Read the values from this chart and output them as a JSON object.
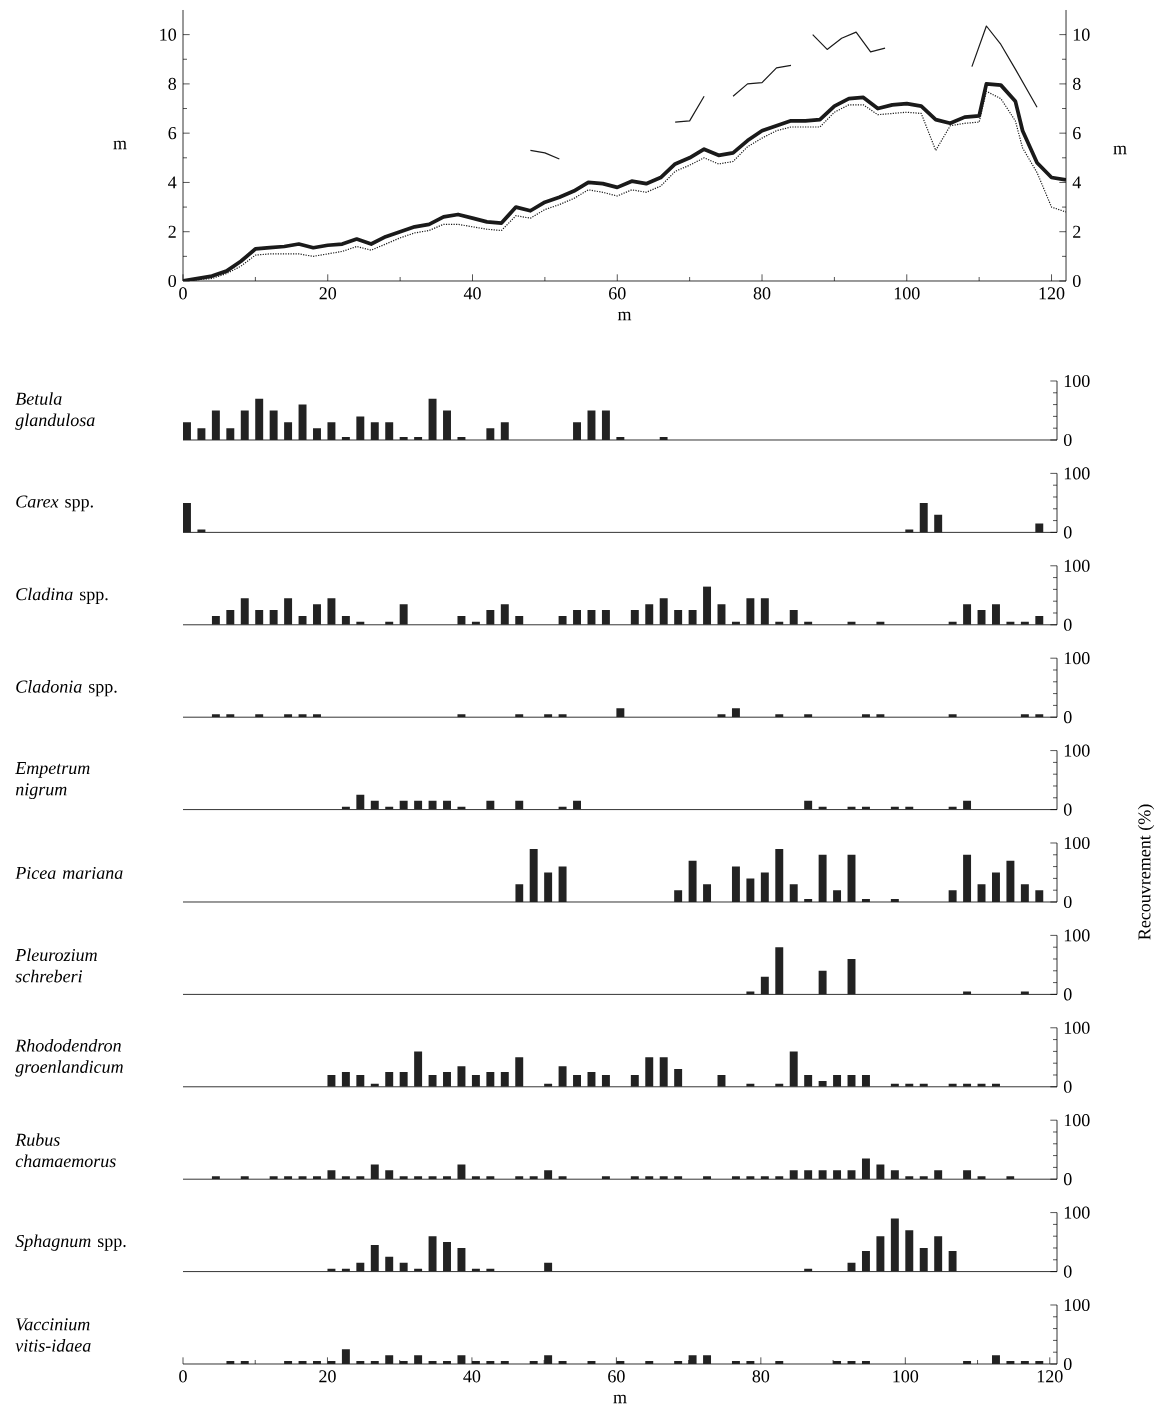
{
  "chart_data": [
    {
      "type": "line",
      "xlabel": "m",
      "ylabel": "m",
      "y2label": "m",
      "xlim": [
        0,
        122
      ],
      "xticks": [
        0,
        20,
        40,
        60,
        80,
        100,
        120
      ],
      "ylim": [
        0,
        11
      ],
      "yticks": [
        0,
        2,
        4,
        6,
        8,
        10
      ],
      "y2lim": [
        0,
        11
      ],
      "y2ticks": [
        0,
        2,
        4,
        6,
        8,
        10
      ],
      "x": [
        0,
        2,
        4,
        6,
        8,
        10,
        12,
        14,
        16,
        18,
        20,
        22,
        24,
        26,
        28,
        30,
        32,
        34,
        36,
        38,
        40,
        42,
        44,
        46,
        48,
        50,
        52,
        54,
        56,
        58,
        60,
        62,
        64,
        66,
        68,
        70,
        72,
        74,
        76,
        78,
        80,
        82,
        84,
        86,
        88,
        90,
        92,
        94,
        96,
        98,
        100,
        102,
        104,
        106,
        108,
        110,
        111,
        113,
        115,
        116,
        118,
        120,
        122
      ],
      "series": [
        {
          "color": "#1a1a1a",
          "line_style": "solid",
          "values": [
            0,
            0.1,
            0.2,
            0.4,
            0.8,
            1.3,
            1.35,
            1.4,
            1.5,
            1.35,
            1.45,
            1.5,
            1.7,
            1.5,
            1.8,
            2.0,
            2.2,
            2.3,
            2.6,
            2.7,
            2.55,
            2.4,
            2.35,
            3.0,
            2.85,
            3.2,
            3.4,
            3.65,
            4.0,
            3.95,
            3.8,
            4.05,
            3.95,
            4.2,
            4.75,
            5.0,
            5.35,
            5.1,
            5.2,
            5.7,
            6.1,
            6.3,
            6.5,
            6.5,
            6.55,
            7.1,
            7.4,
            7.45,
            7.0,
            7.15,
            7.2,
            7.1,
            6.55,
            6.4,
            6.65,
            6.7,
            8.0,
            7.95,
            7.3,
            6.1,
            4.8,
            4.2,
            4.1
          ]
        },
        {
          "color": "#1a1a1a",
          "line_style": "dotted",
          "values": [
            0,
            0.05,
            0.1,
            0.3,
            0.6,
            1.05,
            1.1,
            1.1,
            1.1,
            1.0,
            1.1,
            1.2,
            1.4,
            1.25,
            1.5,
            1.75,
            1.95,
            2.05,
            2.3,
            2.3,
            2.2,
            2.1,
            2.05,
            2.65,
            2.55,
            2.9,
            3.1,
            3.35,
            3.7,
            3.6,
            3.45,
            3.7,
            3.6,
            3.85,
            4.45,
            4.7,
            5.0,
            4.75,
            4.85,
            5.45,
            5.8,
            6.1,
            6.25,
            6.25,
            6.25,
            6.85,
            7.15,
            7.15,
            6.75,
            6.8,
            6.85,
            6.8,
            5.3,
            6.3,
            6.4,
            6.45,
            7.7,
            7.4,
            6.5,
            5.4,
            4.4,
            3.0,
            2.8
          ]
        },
        {
          "color": "#1a1a1a",
          "line_style": "solid",
          "x": [
            48,
            50,
            52,
            60,
            68,
            70,
            72,
            74,
            76,
            78,
            80,
            82,
            84,
            86,
            87,
            89,
            91,
            93,
            95,
            97,
            103,
            109,
            111,
            113,
            115,
            118
          ],
          "values": [
            5.3,
            5.2,
            4.95,
            null,
            6.45,
            6.5,
            7.5,
            null,
            7.5,
            8.0,
            8.05,
            8.65,
            8.75,
            null,
            10.0,
            9.4,
            9.85,
            10.1,
            9.3,
            9.45,
            null,
            8.7,
            10.35,
            9.6,
            8.6,
            7.05
          ]
        }
      ]
    },
    {
      "type": "bar",
      "title": "*Betula glandulosa*",
      "color": "#222222",
      "xlim": [
        0,
        121
      ],
      "ylim": [
        0,
        100
      ],
      "yticks": [
        0,
        100
      ],
      "tick_labels": "y",
      "x": [
        0,
        2,
        4,
        6,
        8,
        10,
        12,
        14,
        16,
        18,
        20,
        22,
        24,
        26,
        28,
        30,
        32,
        34,
        36,
        38,
        42,
        44,
        54,
        56,
        58,
        60,
        66
      ],
      "values": [
        30,
        20,
        50,
        20,
        50,
        70,
        50,
        30,
        60,
        20,
        30,
        5,
        40,
        30,
        30,
        5,
        5,
        70,
        50,
        5,
        20,
        30,
        30,
        50,
        50,
        5,
        5
      ]
    },
    {
      "type": "bar",
      "title": "*Carex* spp.",
      "color": "#222222",
      "xlim": [
        0,
        121
      ],
      "ylim": [
        0,
        100
      ],
      "yticks": [
        0,
        100
      ],
      "tick_labels": "y",
      "x": [
        0,
        2,
        100,
        102,
        104,
        118
      ],
      "values": [
        50,
        5,
        5,
        50,
        30,
        15
      ]
    },
    {
      "type": "bar",
      "title": "*Cladina* spp.",
      "color": "#222222",
      "xlim": [
        0,
        121
      ],
      "ylim": [
        0,
        100
      ],
      "yticks": [
        0,
        100
      ],
      "tick_labels": "y",
      "x": [
        4,
        6,
        8,
        10,
        12,
        14,
        16,
        18,
        20,
        22,
        24,
        28,
        30,
        38,
        40,
        42,
        44,
        46,
        52,
        54,
        56,
        58,
        62,
        64,
        66,
        68,
        70,
        72,
        74,
        76,
        78,
        80,
        82,
        84,
        86,
        92,
        96,
        106,
        108,
        110,
        112,
        114,
        116,
        118
      ],
      "values": [
        15,
        25,
        45,
        25,
        25,
        45,
        15,
        35,
        45,
        15,
        5,
        5,
        35,
        15,
        5,
        25,
        35,
        15,
        15,
        25,
        25,
        25,
        25,
        35,
        45,
        25,
        25,
        65,
        35,
        5,
        45,
        45,
        5,
        25,
        5,
        5,
        5,
        5,
        35,
        25,
        35,
        5,
        5,
        15
      ]
    },
    {
      "type": "bar",
      "title": "*Cladonia* spp.",
      "color": "#222222",
      "xlim": [
        0,
        121
      ],
      "ylim": [
        0,
        100
      ],
      "yticks": [
        0,
        100
      ],
      "tick_labels": "y",
      "x": [
        4,
        6,
        10,
        14,
        16,
        18,
        38,
        46,
        50,
        52,
        60,
        74,
        76,
        82,
        86,
        94,
        96,
        106,
        116,
        118
      ],
      "values": [
        5,
        5,
        5,
        5,
        5,
        5,
        5,
        5,
        5,
        5,
        15,
        5,
        15,
        5,
        5,
        5,
        5,
        5,
        5,
        5
      ]
    },
    {
      "type": "bar",
      "title": "*Empetrum nigrum*",
      "color": "#222222",
      "xlim": [
        0,
        121
      ],
      "ylim": [
        0,
        100
      ],
      "yticks": [
        0,
        100
      ],
      "tick_labels": "y",
      "x": [
        22,
        24,
        26,
        28,
        30,
        32,
        34,
        36,
        38,
        42,
        46,
        52,
        54,
        86,
        88,
        92,
        94,
        98,
        100,
        106,
        108
      ],
      "values": [
        5,
        25,
        15,
        5,
        15,
        15,
        15,
        15,
        5,
        15,
        15,
        5,
        15,
        15,
        5,
        5,
        5,
        5,
        5,
        5,
        15
      ]
    },
    {
      "type": "bar",
      "title": "*Picea mariana*",
      "ylabel": "Recouvrement (%)",
      "color": "#222222",
      "xlim": [
        0,
        121
      ],
      "ylim": [
        0,
        100
      ],
      "yticks": [
        0,
        100
      ],
      "tick_labels": "y",
      "x": [
        46,
        48,
        50,
        52,
        68,
        70,
        72,
        76,
        78,
        80,
        82,
        84,
        86,
        88,
        90,
        92,
        94,
        98,
        106,
        108,
        110,
        112,
        114,
        116,
        118
      ],
      "values": [
        30,
        90,
        50,
        60,
        20,
        70,
        30,
        60,
        40,
        50,
        90,
        30,
        5,
        80,
        20,
        80,
        5,
        5,
        20,
        80,
        30,
        50,
        70,
        30,
        20
      ]
    },
    {
      "type": "bar",
      "title": "*Pleurozium schreberi*",
      "color": "#222222",
      "xlim": [
        0,
        121
      ],
      "ylim": [
        0,
        100
      ],
      "yticks": [
        0,
        100
      ],
      "tick_labels": "y",
      "x": [
        78,
        80,
        82,
        88,
        92,
        108,
        116
      ],
      "values": [
        5,
        30,
        80,
        40,
        60,
        5,
        5
      ]
    },
    {
      "type": "bar",
      "title": "*Rhododendron groenlandicum*",
      "color": "#222222",
      "xlim": [
        0,
        121
      ],
      "ylim": [
        0,
        100
      ],
      "yticks": [
        0,
        100
      ],
      "tick_labels": "y",
      "x": [
        20,
        22,
        24,
        26,
        28,
        30,
        32,
        34,
        36,
        38,
        40,
        42,
        44,
        46,
        50,
        52,
        54,
        56,
        58,
        62,
        64,
        66,
        68,
        74,
        78,
        82,
        84,
        86,
        88,
        90,
        92,
        94,
        98,
        100,
        102,
        106,
        108,
        110,
        112
      ],
      "values": [
        20,
        25,
        20,
        5,
        25,
        25,
        60,
        20,
        25,
        35,
        20,
        25,
        25,
        50,
        5,
        35,
        20,
        25,
        20,
        20,
        50,
        50,
        30,
        20,
        5,
        5,
        60,
        20,
        10,
        20,
        20,
        20,
        5,
        5,
        5,
        5,
        5,
        5,
        5
      ]
    },
    {
      "type": "bar",
      "title": "*Rubus chamaemorus*",
      "color": "#222222",
      "xlim": [
        0,
        121
      ],
      "ylim": [
        0,
        100
      ],
      "yticks": [
        0,
        100
      ],
      "tick_labels": "y",
      "x": [
        4,
        8,
        12,
        14,
        16,
        18,
        20,
        22,
        24,
        26,
        28,
        30,
        32,
        34,
        36,
        38,
        40,
        42,
        46,
        48,
        50,
        52,
        58,
        62,
        64,
        66,
        68,
        72,
        76,
        78,
        80,
        82,
        84,
        86,
        88,
        90,
        92,
        94,
        96,
        98,
        100,
        102,
        104,
        108,
        110,
        114
      ],
      "values": [
        5,
        5,
        5,
        5,
        5,
        5,
        15,
        5,
        5,
        25,
        15,
        5,
        5,
        5,
        5,
        25,
        5,
        5,
        5,
        5,
        15,
        5,
        5,
        5,
        5,
        5,
        5,
        5,
        5,
        5,
        5,
        5,
        15,
        15,
        15,
        15,
        15,
        35,
        25,
        15,
        5,
        5,
        15,
        15,
        5,
        5
      ]
    },
    {
      "type": "bar",
      "title": "*Sphagnum* spp.",
      "color": "#222222",
      "xlim": [
        0,
        121
      ],
      "ylim": [
        0,
        100
      ],
      "yticks": [
        0,
        100
      ],
      "tick_labels": "y",
      "x": [
        20,
        22,
        24,
        26,
        28,
        30,
        32,
        34,
        36,
        38,
        40,
        42,
        50,
        86,
        92,
        94,
        96,
        98,
        100,
        102,
        104,
        106
      ],
      "values": [
        5,
        5,
        15,
        45,
        25,
        15,
        5,
        60,
        50,
        40,
        5,
        5,
        15,
        5,
        15,
        35,
        60,
        90,
        70,
        40,
        60,
        35
      ]
    },
    {
      "type": "bar",
      "title": "*Vaccinium vitis-idaea*",
      "xlabel": "m",
      "color": "#222222",
      "xlim": [
        0,
        121
      ],
      "xticks": [
        0,
        20,
        40,
        60,
        80,
        100,
        120
      ],
      "ylim": [
        0,
        100
      ],
      "yticks": [
        0,
        100
      ],
      "x": [
        6,
        8,
        14,
        16,
        18,
        20,
        22,
        24,
        26,
        28,
        30,
        32,
        34,
        36,
        38,
        40,
        42,
        44,
        48,
        50,
        52,
        56,
        60,
        64,
        68,
        70,
        72,
        76,
        78,
        82,
        90,
        92,
        94,
        108,
        112,
        114,
        116,
        118
      ],
      "values": [
        5,
        5,
        5,
        5,
        5,
        5,
        25,
        5,
        5,
        15,
        5,
        15,
        5,
        5,
        15,
        5,
        5,
        5,
        5,
        15,
        5,
        5,
        5,
        5,
        5,
        15,
        15,
        5,
        5,
        5,
        5,
        5,
        5,
        5,
        15,
        5,
        5,
        5
      ]
    }
  ]
}
